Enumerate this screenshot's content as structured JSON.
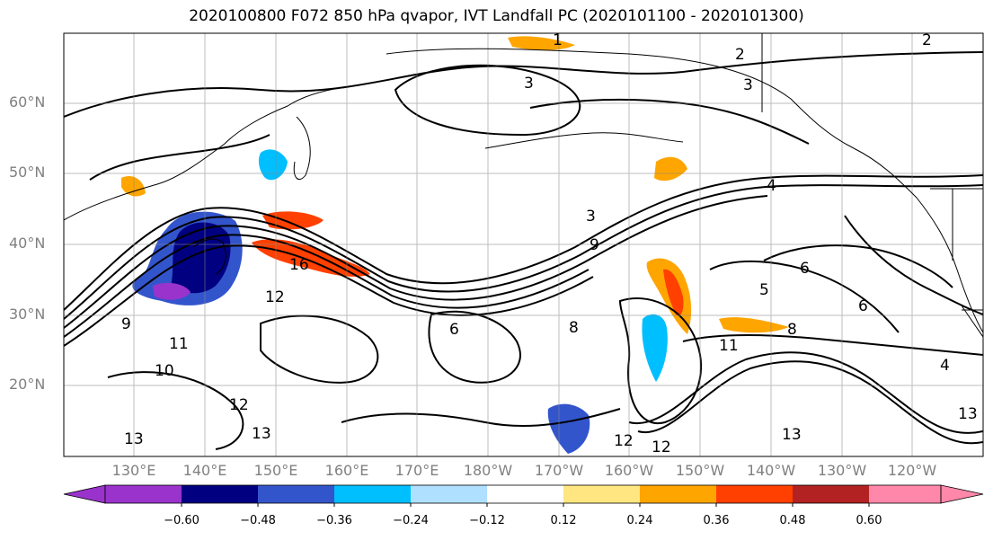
{
  "title": "2020100800 F072 850 hPa qvapor, IVT Landfall PC (2020101100 - 2020101300)",
  "lat_labels": [
    "60°N",
    "50°N",
    "40°N",
    "30°N",
    "20°N"
  ],
  "lon_labels": [
    "130°E",
    "140°E",
    "150°E",
    "160°E",
    "170°E",
    "180°W",
    "170°W",
    "160°W",
    "150°W",
    "140°W",
    "130°W",
    "120°W"
  ],
  "colorbar": {
    "colors": [
      "#9933cc",
      "#000080",
      "#3355cc",
      "#00bfff",
      "#b0e0ff",
      "#ffffff",
      "#ffe680",
      "#ffa500",
      "#ff4000",
      "#b22222",
      "#ff88aa"
    ],
    "labels": [
      "−0.60",
      "−0.48",
      "−0.36",
      "−0.24",
      "−0.12",
      "0.12",
      "0.24",
      "0.36",
      "0.48",
      "0.60"
    ]
  },
  "contour_labels": [
    "1",
    "2",
    "2",
    "3",
    "3",
    "3",
    "4",
    "4",
    "5",
    "6",
    "6",
    "6",
    "8",
    "8",
    "9",
    "9",
    "10",
    "11",
    "11",
    "12",
    "12",
    "12",
    "12",
    "13",
    "13",
    "13",
    "13",
    "16"
  ]
}
